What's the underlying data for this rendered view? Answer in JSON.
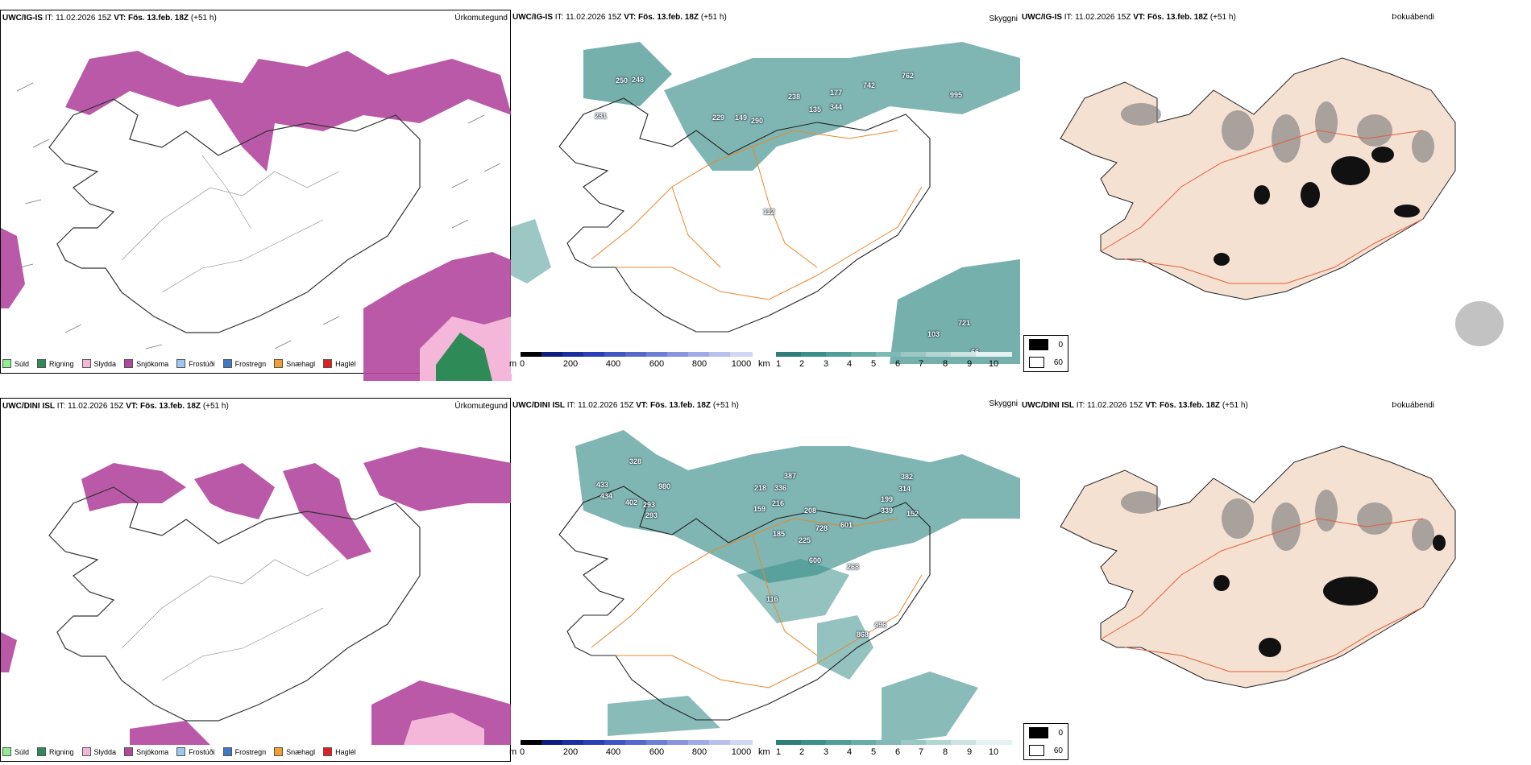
{
  "rows": [
    {
      "model": "UWC/IG-IS",
      "panels": [
        {
          "field": "Úrkomutegund"
        },
        {
          "field": "Skyggni"
        },
        {
          "field": "Þokuábendi"
        }
      ]
    },
    {
      "model": "UWC/DINI ISL",
      "panels": [
        {
          "field": "Úrkomutegund"
        },
        {
          "field": "Skyggni"
        },
        {
          "field": "Þokuábendi"
        }
      ]
    }
  ],
  "common": {
    "it_label": "IT:",
    "it_value": "11.02.2026 15Z",
    "vt_label": "VT:",
    "vt_value": "Fös. 13.feb. 18Z",
    "lead": "(+51 h)"
  },
  "precip_legend": [
    {
      "label": "Súld",
      "color": "#90ee90"
    },
    {
      "label": "Rigning",
      "color": "#2e8b57"
    },
    {
      "label": "Slydda",
      "color": "#f4b6d9"
    },
    {
      "label": "Snjókoma",
      "color": "#b2479e"
    },
    {
      "label": "Frostúði",
      "color": "#9ec6f0"
    },
    {
      "label": "Frostregn",
      "color": "#3f79c6"
    },
    {
      "label": "Snæhagl",
      "color": "#f0a030"
    },
    {
      "label": "Haglél",
      "color": "#e02020"
    }
  ],
  "ceiling_bar": {
    "unit": "m",
    "ticks": [
      "0",
      "200",
      "400",
      "600",
      "800",
      "1000"
    ]
  },
  "visibility_bar": {
    "unit": "km",
    "ticks": [
      "1",
      "2",
      "3",
      "4",
      "5",
      "6",
      "7",
      "8",
      "9",
      "10"
    ]
  },
  "fog_key": [
    {
      "label": "0",
      "color": "#000000"
    },
    {
      "label": "60",
      "color": "#ffffff"
    }
  ],
  "labels_top": [
    "250",
    "248",
    "231",
    "229",
    "149",
    "290",
    "238",
    "135",
    "344",
    "177",
    "742",
    "762",
    "995",
    "112",
    "66",
    "721",
    "103"
  ],
  "labels_bottom": [
    "328",
    "433",
    "434",
    "980",
    "402",
    "293",
    "293",
    "218",
    "336",
    "387",
    "159",
    "216",
    "208",
    "185",
    "225",
    "728",
    "600",
    "601",
    "382",
    "314",
    "199",
    "339",
    "152",
    "116",
    "268",
    "496",
    "868"
  ]
}
